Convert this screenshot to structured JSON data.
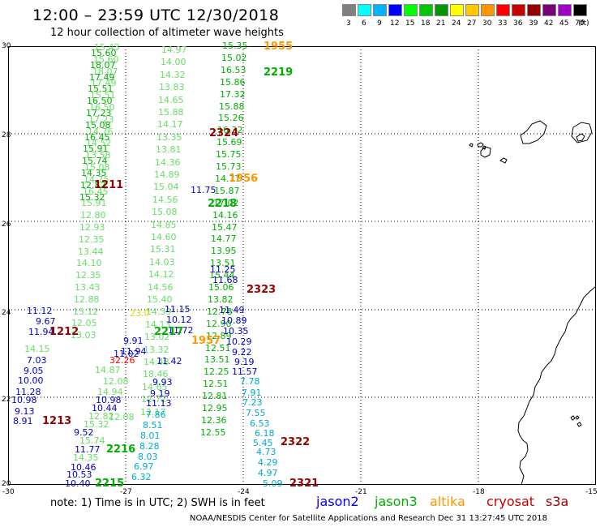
{
  "title": "12:00 – 23:59 UTC 12/30/2018",
  "subtitle": "12 hour collection of altimeter wave heights",
  "scale": {
    "colors": [
      "#808080",
      "#00ffff",
      "#00b4ff",
      "#0000ff",
      "#00ff00",
      "#00c800",
      "#009600",
      "#ffff00",
      "#ffc800",
      "#ff9600",
      "#ff0000",
      "#c80000",
      "#960000",
      "#780078",
      "#a000c8",
      "#000000"
    ],
    "labels": [
      "3",
      "6",
      "9",
      "12",
      "15",
      "18",
      "21",
      "24",
      "27",
      "30",
      "33",
      "36",
      "39",
      "42",
      "45",
      "70"
    ],
    "unit": "(ft)"
  },
  "lat_labels": [
    "30",
    "28",
    "26",
    "24",
    "22",
    "20"
  ],
  "lon_labels": [
    "-30",
    "-27",
    "-24",
    "-21",
    "-18",
    "-15"
  ],
  "note": "note:  1) Time is in UTC;  2) SWH is in feet",
  "satellites": {
    "jason2": {
      "label": "jason2",
      "color": "#0000ff"
    },
    "jason3": {
      "label": "jason3",
      "color": "#00b000"
    },
    "altika": {
      "label": "altika",
      "color": "#ff9600"
    },
    "cryosat": {
      "label": "cryosat",
      "color": "#c80000"
    },
    "s3a": {
      "label": "s3a",
      "color": "#960000"
    }
  },
  "footer": "NOAA/NESDIS Center for Satellite Applications and Research     Dec 31 13:27:45 UTC 2018",
  "passes": [
    {
      "text": "1955",
      "color": "#ff9600"
    },
    {
      "text": "2219",
      "color": "#00b000"
    },
    {
      "text": "2324",
      "color": "#960000"
    },
    {
      "text": "1956",
      "color": "#ff9600"
    },
    {
      "text": "1211",
      "color": "#960000"
    },
    {
      "text": "2218",
      "color": "#00b000"
    },
    {
      "text": "2323",
      "color": "#960000"
    },
    {
      "text": "1212",
      "color": "#960000"
    },
    {
      "text": "2217",
      "color": "#00b000"
    },
    {
      "text": "1957",
      "color": "#ff9600"
    },
    {
      "text": "1213",
      "color": "#960000"
    },
    {
      "text": "2216",
      "color": "#00b000"
    },
    {
      "text": "2322",
      "color": "#960000"
    },
    {
      "text": "2215",
      "color": "#00b000"
    },
    {
      "text": "2321",
      "color": "#960000"
    }
  ],
  "tracks": [
    {
      "color": "#66dd66",
      "values": [
        "15.43",
        "15.60",
        "18.07",
        "17.49",
        "15.51",
        "16.50",
        "17.23",
        "14.76",
        "14.52",
        "13.58",
        "15.08",
        "14.75",
        "16.45",
        "15.91",
        "12.80",
        "12.93",
        "12.35",
        "13.44",
        "14.10",
        "12.35",
        "13.43",
        "12.88",
        "13.12",
        "12.05",
        "13.03"
      ]
    },
    {
      "color": "#00b000",
      "values": [
        "15.60",
        "18.07",
        "17.49",
        "15.51",
        "16.50",
        "17.23",
        "15.08",
        "16.45",
        "15.91",
        "15.74",
        "14.35",
        "12.82",
        "15.32"
      ]
    },
    {
      "color": "#66dd66",
      "values": [
        "14.97",
        "14.00",
        "14.32",
        "13.83",
        "14.65",
        "15.88",
        "14.17",
        "13.35",
        "13.81",
        "14.36",
        "14.89",
        "15.04",
        "14.56",
        "15.08",
        "14.85",
        "14.60",
        "15.31",
        "14.03",
        "14.12",
        "14.56",
        "15.40",
        "14.39",
        "14.13",
        "13.02",
        "13.32",
        "14.48",
        "18.46",
        "14.65",
        "12.72",
        "12.17"
      ]
    },
    {
      "color": "#00b000",
      "values": [
        "15.35",
        "15.02",
        "16.53",
        "15.86",
        "17.32",
        "15.88",
        "15.26",
        "16.32",
        "15.69",
        "15.75",
        "15.73",
        "14.77",
        "15.87",
        "17.02",
        "14.16",
        "15.47",
        "14.77",
        "13.95",
        "13.51",
        "15.44",
        "15.06",
        "13.82",
        "12.78",
        "12.90",
        "12.89",
        "12.51",
        "13.51",
        "12.25",
        "12.51",
        "12.81",
        "12.95",
        "12.36",
        "12.55"
      ]
    },
    {
      "color": "#0000c8",
      "values": [
        "11.12",
        "11.94",
        "9.67",
        "7.03",
        "9.05",
        "10.00",
        "11.28",
        "10.98",
        "9.13",
        "8.91",
        "9.52",
        "11.77",
        "10.46",
        "10.53",
        "10.40",
        "11.02",
        "11.94",
        "11.42",
        "9.93",
        "9.19",
        "11.13",
        "10.98",
        "10.44",
        "11.75",
        "11.25",
        "11.68",
        "11.49",
        "10.89",
        "10.35",
        "10.29",
        "9.22",
        "9.19",
        "11.57",
        "11.15",
        "10.12",
        "11.72",
        "9.91"
      ]
    },
    {
      "color": "#00aacc",
      "values": [
        "7.86",
        "8.51",
        "8.01",
        "8.28",
        "8.03",
        "6.97",
        "6.32",
        "7.78",
        "7.91",
        "7.23",
        "7.55",
        "6.53",
        "6.18",
        "5.45",
        "4.73",
        "4.29",
        "4.97",
        "5.09"
      ]
    },
    {
      "color": "#66dd66",
      "values": [
        "14.15",
        "14.87",
        "12.08",
        "14.94",
        "12.08",
        "15.74",
        "14.35",
        "12.82",
        "15.32"
      ]
    },
    {
      "color": "#ff0000",
      "values": [
        "32.26"
      ]
    },
    {
      "color": "#dddd00",
      "values": [
        "23.0"
      ]
    }
  ]
}
